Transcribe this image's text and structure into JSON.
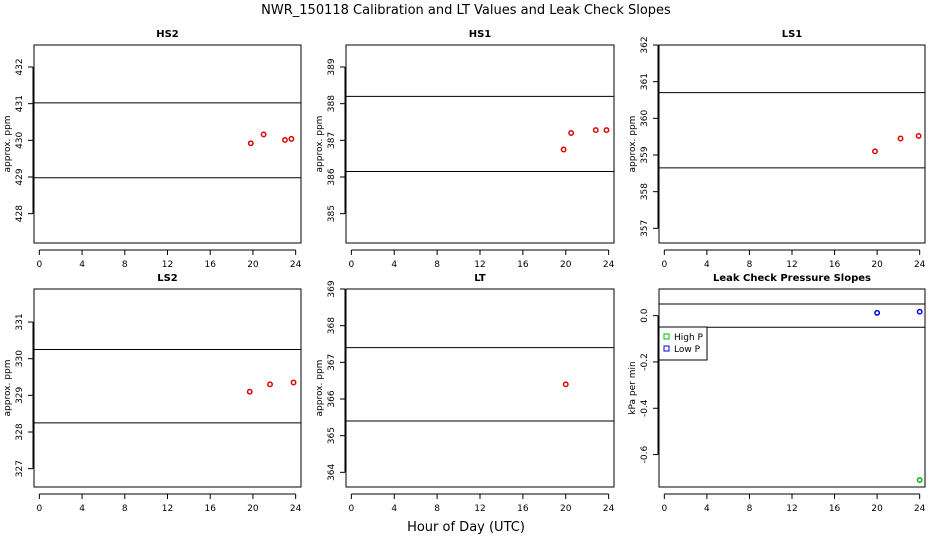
{
  "figure": {
    "title": "NWR_150118  Calibration and LT Values and Leak Check Slopes",
    "xlabel": "Hour of Day (UTC)"
  },
  "chart_data": [
    {
      "type": "scatter",
      "title": "HS2",
      "xlabel": "",
      "ylabel": "approx. ppm",
      "xlim": [
        -0.5,
        24.5
      ],
      "ylim": [
        427.2,
        432.6
      ],
      "xticks": [
        0,
        4,
        8,
        12,
        16,
        20,
        24
      ],
      "yticks": [
        428,
        429,
        430,
        431,
        432
      ],
      "hlines": [
        431.02,
        428.98
      ],
      "grid": false,
      "series": [
        {
          "color": "#dd0000",
          "marker": "circle",
          "x": [
            19.8,
            21.0,
            23.0,
            23.6
          ],
          "y": [
            429.92,
            430.16,
            430.01,
            430.04
          ]
        }
      ]
    },
    {
      "type": "scatter",
      "title": "HS1",
      "xlabel": "",
      "ylabel": "approx. ppm",
      "xlim": [
        -0.5,
        24.5
      ],
      "ylim": [
        384.2,
        389.6
      ],
      "xticks": [
        0,
        4,
        8,
        12,
        16,
        20,
        24
      ],
      "yticks": [
        385,
        386,
        387,
        388,
        389
      ],
      "hlines": [
        388.2,
        386.15
      ],
      "grid": false,
      "series": [
        {
          "color": "#dd0000",
          "marker": "circle",
          "x": [
            19.8,
            20.5,
            22.8,
            23.8
          ],
          "y": [
            386.75,
            387.2,
            387.28,
            387.28
          ]
        }
      ]
    },
    {
      "type": "scatter",
      "title": "LS1",
      "xlabel": "",
      "ylabel": "approx. ppm",
      "xlim": [
        -0.5,
        24.5
      ],
      "ylim": [
        356.6,
        362.0
      ],
      "xticks": [
        0,
        4,
        8,
        12,
        16,
        20,
        24
      ],
      "yticks": [
        357,
        358,
        359,
        360,
        361,
        362
      ],
      "hlines": [
        360.7,
        358.65
      ],
      "grid": false,
      "series": [
        {
          "color": "#dd0000",
          "marker": "circle",
          "x": [
            19.8,
            22.2,
            23.9
          ],
          "y": [
            359.1,
            359.45,
            359.52
          ]
        }
      ]
    },
    {
      "type": "scatter",
      "title": "LS2",
      "xlabel": "",
      "ylabel": "approx. ppm",
      "xlim": [
        -0.5,
        24.5
      ],
      "ylim": [
        326.5,
        331.9
      ],
      "xticks": [
        0,
        4,
        8,
        12,
        16,
        20,
        24
      ],
      "yticks": [
        327,
        328,
        329,
        330,
        331
      ],
      "hlines": [
        330.25,
        328.25
      ],
      "grid": false,
      "series": [
        {
          "color": "#dd0000",
          "marker": "circle",
          "x": [
            19.7,
            21.6,
            23.8
          ],
          "y": [
            329.1,
            329.3,
            329.35
          ]
        }
      ]
    },
    {
      "type": "scatter",
      "title": "LT",
      "xlabel": "",
      "ylabel": "approx. ppm",
      "xlim": [
        -0.5,
        24.5
      ],
      "ylim": [
        363.6,
        369.0
      ],
      "xticks": [
        0,
        4,
        8,
        12,
        16,
        20,
        24
      ],
      "yticks": [
        364,
        365,
        366,
        367,
        368,
        369
      ],
      "hlines": [
        367.4,
        365.4
      ],
      "grid": false,
      "series": [
        {
          "color": "#dd0000",
          "marker": "circle",
          "x": [
            20.0
          ],
          "y": [
            366.4
          ]
        }
      ]
    },
    {
      "type": "scatter",
      "title": "Leak Check Pressure Slopes",
      "xlabel": "",
      "ylabel": "kPa per min",
      "xlim": [
        -0.5,
        24.5
      ],
      "ylim": [
        -0.74,
        0.115
      ],
      "xticks": [
        0,
        4,
        8,
        12,
        16,
        20,
        24
      ],
      "yticks": [
        -0.6,
        -0.4,
        -0.2,
        0.0
      ],
      "ytick_labels": [
        "-0.6",
        "-0.4",
        "-0.2",
        "0.0"
      ],
      "hlines": [
        0.05,
        -0.05
      ],
      "grid": false,
      "legend": "left",
      "series": [
        {
          "name": "High P",
          "color": "#00bb00",
          "marker": "circle",
          "x": [
            24.0
          ],
          "y": [
            -0.71
          ]
        },
        {
          "name": "Low P",
          "color": "#0000dd",
          "marker": "circle",
          "x": [
            20.0,
            24.0
          ],
          "y": [
            0.012,
            0.017
          ]
        }
      ]
    }
  ]
}
